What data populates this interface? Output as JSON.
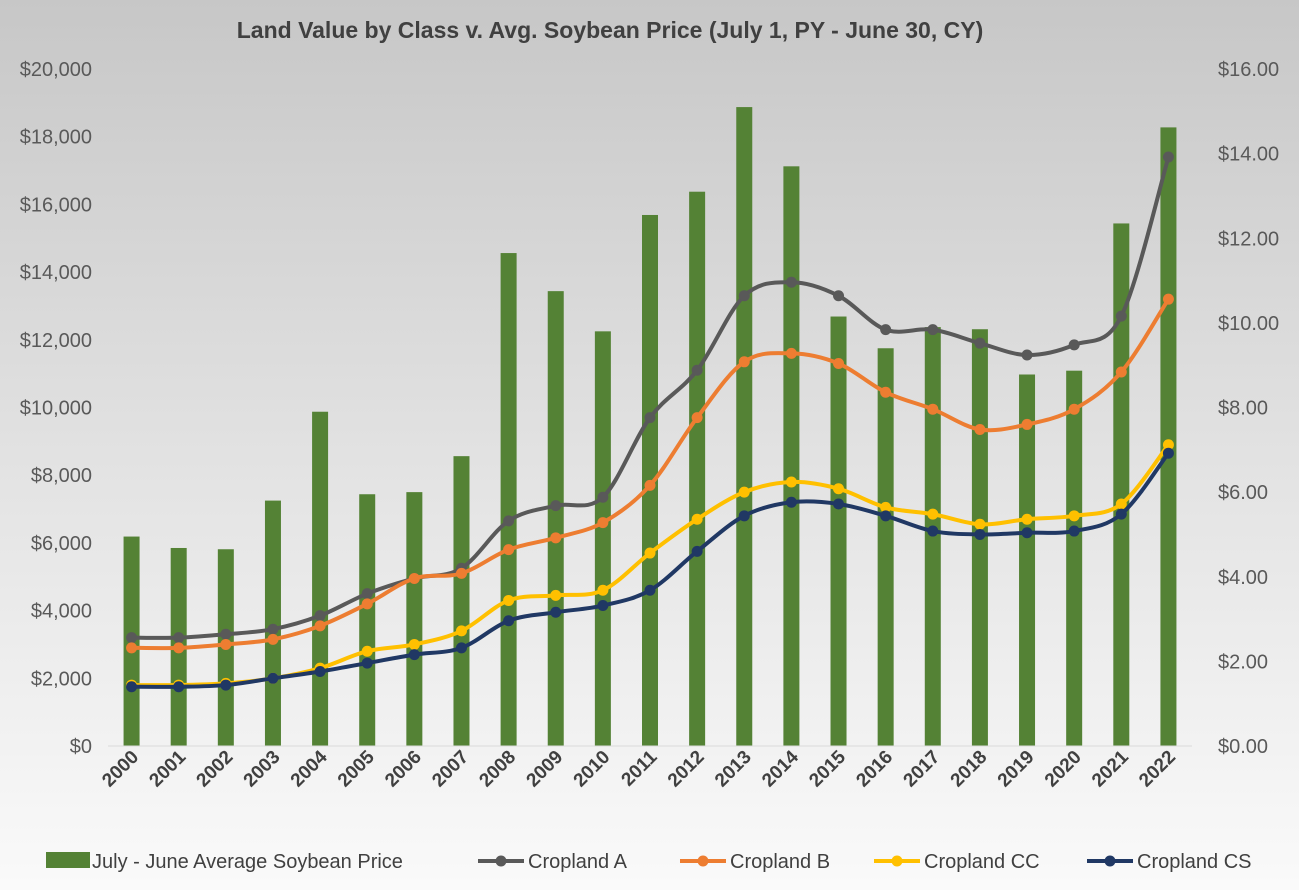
{
  "chart_data": {
    "type": "bar",
    "title": "Land Value by Class v. Avg. Soybean Price (July 1, PY - June 30, CY)",
    "categories": [
      "2000",
      "2001",
      "2002",
      "2003",
      "2004",
      "2005",
      "2006",
      "2007",
      "2008",
      "2009",
      "2010",
      "2011",
      "2012",
      "2013",
      "2014",
      "2015",
      "2016",
      "2017",
      "2018",
      "2019",
      "2020",
      "2021",
      "2022"
    ],
    "y_left": {
      "range": [
        0,
        20000
      ],
      "ticks": [
        0,
        2000,
        4000,
        6000,
        8000,
        10000,
        12000,
        14000,
        16000,
        18000,
        20000
      ],
      "tick_labels": [
        "$0",
        "$2,000",
        "$4,000",
        "$6,000",
        "$8,000",
        "$10,000",
        "$12,000",
        "$14,000",
        "$16,000",
        "$18,000",
        "$20,000"
      ]
    },
    "y_right": {
      "range": [
        0,
        16
      ],
      "ticks": [
        0,
        2,
        4,
        6,
        8,
        10,
        12,
        14,
        16
      ],
      "tick_labels": [
        "$0.00",
        "$2.00",
        "$4.00",
        "$6.00",
        "$8.00",
        "$10.00",
        "$12.00",
        "$14.00",
        "$16.00"
      ]
    },
    "bar_series": {
      "name": "July - June Average Soybean Price",
      "axis": "right",
      "color": "#548235",
      "values": [
        4.95,
        4.68,
        4.65,
        5.8,
        7.9,
        5.95,
        6.0,
        6.85,
        11.65,
        10.75,
        9.8,
        12.55,
        13.1,
        15.1,
        13.7,
        10.15,
        9.4,
        9.9,
        9.85,
        8.78,
        8.87,
        12.35,
        14.62
      ]
    },
    "line_series": [
      {
        "name": "Cropland A",
        "axis": "left",
        "color": "#595959",
        "values": [
          3200,
          3200,
          3300,
          3450,
          3850,
          4500,
          4950,
          5250,
          6650,
          7100,
          7350,
          9700,
          11100,
          13300,
          13700,
          13300,
          12300,
          12300,
          11900,
          11550,
          11850,
          12700,
          17400
        ]
      },
      {
        "name": "Cropland B",
        "axis": "left",
        "color": "#ED7D31",
        "values": [
          2900,
          2900,
          3000,
          3150,
          3550,
          4200,
          4950,
          5100,
          5800,
          6150,
          6600,
          7700,
          9700,
          11350,
          11600,
          11300,
          10450,
          9950,
          9350,
          9500,
          9950,
          11050,
          13200
        ]
      },
      {
        "name": "Cropland CC",
        "axis": "left",
        "color": "#FFC000",
        "values": [
          1800,
          1800,
          1850,
          2000,
          2300,
          2800,
          3000,
          3400,
          4300,
          4450,
          4600,
          5700,
          6700,
          7500,
          7800,
          7600,
          7050,
          6850,
          6550,
          6700,
          6800,
          7150,
          8900
        ]
      },
      {
        "name": "Cropland CS",
        "axis": "left",
        "color": "#203864",
        "values": [
          1750,
          1750,
          1800,
          2000,
          2200,
          2450,
          2700,
          2900,
          3700,
          3950,
          4150,
          4600,
          5750,
          6800,
          7200,
          7150,
          6800,
          6350,
          6250,
          6300,
          6350,
          6850,
          8650
        ]
      }
    ],
    "legend_position": "bottom",
    "grid": false
  }
}
